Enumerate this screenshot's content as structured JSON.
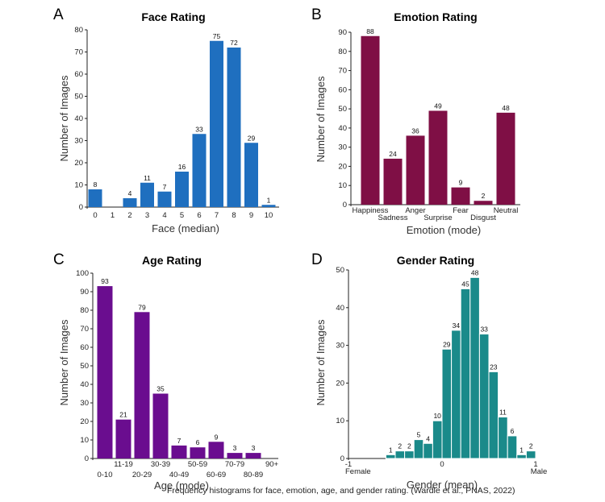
{
  "caption": "Frequency histograms for face, emotion, age, and gender rating. (Wardle et al., PNAS, 2022)",
  "chart_data": [
    {
      "panel": "A",
      "type": "bar",
      "title": "Face Rating",
      "xlabel": "Face (median)",
      "ylabel": "Number of Images",
      "color": "#1f6fbf",
      "ylim": [
        0,
        80
      ],
      "yticks": [
        0,
        10,
        20,
        30,
        40,
        50,
        60,
        70,
        80
      ],
      "categories": [
        "0",
        "1",
        "2",
        "3",
        "4",
        "5",
        "6",
        "7",
        "8",
        "9",
        "10"
      ],
      "values": [
        8,
        0,
        4,
        11,
        7,
        16,
        33,
        75,
        72,
        29,
        1
      ],
      "value_labels": [
        "8",
        "",
        "4",
        "11",
        "7",
        "16",
        "33",
        "75",
        "72",
        "29",
        "1"
      ]
    },
    {
      "panel": "B",
      "type": "bar",
      "title": "Emotion Rating",
      "xlabel": "Emotion (mode)",
      "ylabel": "Number of Images",
      "color": "#7f0f45",
      "ylim": [
        0,
        90
      ],
      "yticks": [
        0,
        10,
        20,
        30,
        40,
        50,
        60,
        70,
        80,
        90
      ],
      "categories": [
        "Happiness",
        "Sadness",
        "Anger",
        "Surprise",
        "Fear",
        "Disgust",
        "Neutral"
      ],
      "values": [
        88,
        24,
        36,
        49,
        9,
        2,
        48
      ],
      "value_labels": [
        "88",
        "24",
        "36",
        "49",
        "9",
        "2",
        "48"
      ]
    },
    {
      "panel": "C",
      "type": "bar",
      "title": "Age Rating",
      "xlabel": "Age (mode)",
      "ylabel": "Number of Images",
      "color": "#6a0d8f",
      "ylim": [
        0,
        100
      ],
      "yticks": [
        0,
        10,
        20,
        30,
        40,
        50,
        60,
        70,
        80,
        90,
        100
      ],
      "categories": [
        "0-10",
        "11-19",
        "20-29",
        "30-39",
        "40-49",
        "50-59",
        "60-69",
        "70-79",
        "80-89",
        "90+"
      ],
      "values": [
        93,
        21,
        79,
        35,
        7,
        6,
        9,
        3,
        3,
        0
      ],
      "value_labels": [
        "93",
        "21",
        "79",
        "35",
        "7",
        "6",
        "9",
        "3",
        "3",
        ""
      ]
    },
    {
      "panel": "D",
      "type": "bar",
      "title": "Gender Rating",
      "xlabel": "Gender (mean)",
      "ylabel": "Number of Images",
      "color": "#1a8a8a",
      "ylim": [
        0,
        50
      ],
      "yticks": [
        0,
        10,
        20,
        30,
        40,
        50
      ],
      "xlim": [
        -1,
        1
      ],
      "xticks": [
        "-1",
        "0",
        "1"
      ],
      "x_end_labels": [
        "Female",
        "Male"
      ],
      "bin_centers": [
        -0.65,
        -0.55,
        -0.45,
        -0.35,
        -0.25,
        -0.15,
        -0.05,
        0.05,
        0.15,
        0.25,
        0.35,
        0.45,
        0.55,
        0.65,
        0.75,
        0.85,
        0.95
      ],
      "values": [
        0,
        1,
        2,
        2,
        5,
        4,
        10,
        29,
        34,
        45,
        48,
        33,
        23,
        11,
        6,
        1,
        2
      ],
      "value_labels": [
        "",
        "1",
        "2",
        "2",
        "5",
        "4",
        "10",
        "29",
        "34",
        "45",
        "48",
        "33",
        "23",
        "11",
        "6",
        "1",
        "2"
      ]
    }
  ]
}
